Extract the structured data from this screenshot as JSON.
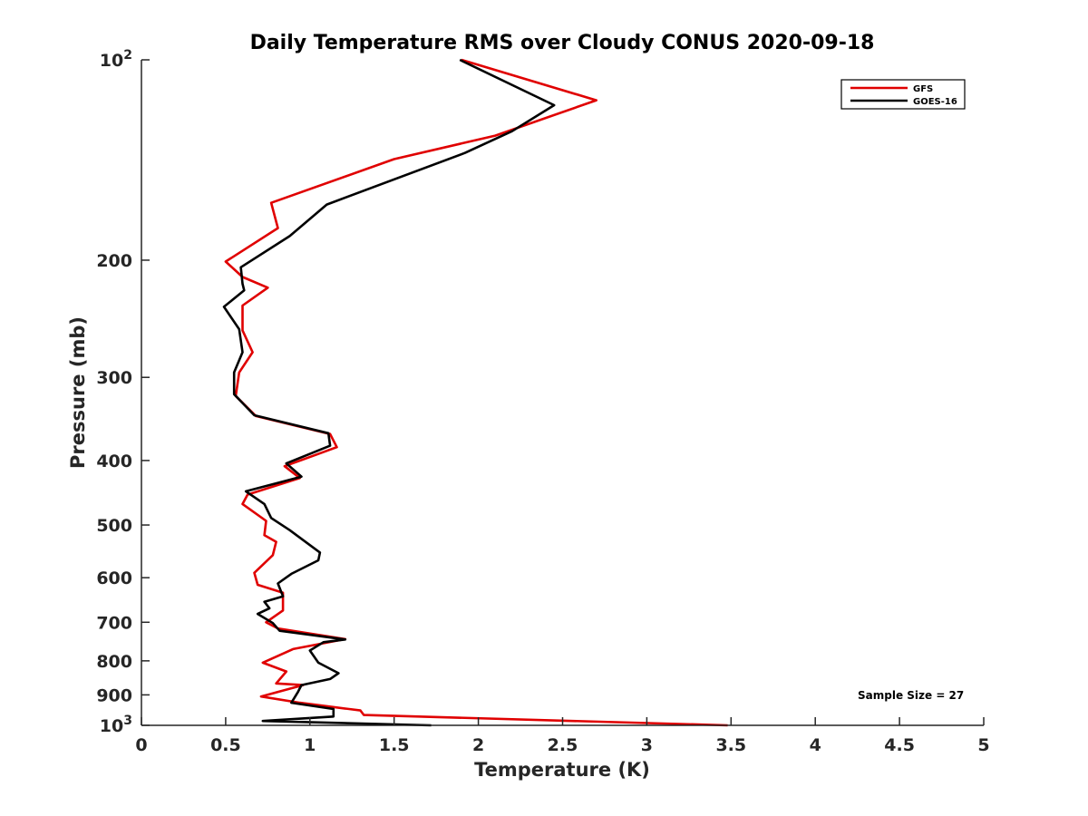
{
  "chart_data": {
    "type": "line",
    "title": "Daily Temperature RMS over Cloudy CONUS 2020-09-18",
    "xlabel": "Temperature (K)",
    "ylabel": "Pressure (mb)",
    "xlim": [
      0,
      5
    ],
    "ylim": [
      100,
      1000
    ],
    "y_scale": "log",
    "y_reversed": true,
    "grid": false,
    "legend_position": "top-right",
    "x_ticks": [
      "0",
      "0.5",
      "1",
      "1.5",
      "2",
      "2.5",
      "3",
      "3.5",
      "4",
      "4.5",
      "5"
    ],
    "y_ticks": [
      {
        "value": 100,
        "base": "10",
        "exp": "2",
        "text": ""
      },
      {
        "value": 200,
        "base": "",
        "exp": "",
        "text": "200"
      },
      {
        "value": 300,
        "base": "",
        "exp": "",
        "text": "300"
      },
      {
        "value": 400,
        "base": "",
        "exp": "",
        "text": "400"
      },
      {
        "value": 500,
        "base": "",
        "exp": "",
        "text": "500"
      },
      {
        "value": 600,
        "base": "",
        "exp": "",
        "text": "600"
      },
      {
        "value": 700,
        "base": "",
        "exp": "",
        "text": "700"
      },
      {
        "value": 800,
        "base": "",
        "exp": "",
        "text": "800"
      },
      {
        "value": 900,
        "base": "",
        "exp": "",
        "text": "900"
      },
      {
        "value": 1000,
        "base": "10",
        "exp": "3",
        "text": ""
      }
    ],
    "annotation": "Sample Size = 27",
    "series": [
      {
        "name": "GFS",
        "color": "#e00000",
        "points": [
          [
            1.9,
            100
          ],
          [
            2.7,
            115
          ],
          [
            2.1,
            130
          ],
          [
            1.5,
            141
          ],
          [
            0.77,
            164
          ],
          [
            0.81,
            179
          ],
          [
            0.5,
            201
          ],
          [
            0.6,
            212
          ],
          [
            0.75,
            220
          ],
          [
            0.6,
            234
          ],
          [
            0.6,
            255
          ],
          [
            0.66,
            275
          ],
          [
            0.58,
            295
          ],
          [
            0.56,
            320
          ],
          [
            0.68,
            343
          ],
          [
            1.12,
            365
          ],
          [
            1.16,
            382
          ],
          [
            0.85,
            408
          ],
          [
            0.94,
            425
          ],
          [
            0.63,
            450
          ],
          [
            0.6,
            465
          ],
          [
            0.74,
            493
          ],
          [
            0.73,
            518
          ],
          [
            0.8,
            530
          ],
          [
            0.78,
            555
          ],
          [
            0.67,
            590
          ],
          [
            0.69,
            615
          ],
          [
            0.84,
            632
          ],
          [
            0.84,
            672
          ],
          [
            0.74,
            700
          ],
          [
            0.81,
            715
          ],
          [
            1.21,
            742
          ],
          [
            0.9,
            768
          ],
          [
            0.72,
            805
          ],
          [
            0.86,
            830
          ],
          [
            0.8,
            865
          ],
          [
            0.96,
            870
          ],
          [
            0.71,
            905
          ],
          [
            0.94,
            925
          ],
          [
            1.3,
            950
          ],
          [
            1.32,
            965
          ],
          [
            3.48,
            1000
          ]
        ]
      },
      {
        "name": "GOES-16",
        "color": "#000000",
        "points": [
          [
            1.89,
            100
          ],
          [
            2.45,
            117
          ],
          [
            2.2,
            128
          ],
          [
            1.92,
            138
          ],
          [
            1.1,
            165
          ],
          [
            0.88,
            184
          ],
          [
            0.59,
            205
          ],
          [
            0.6,
            217
          ],
          [
            0.61,
            222
          ],
          [
            0.49,
            235
          ],
          [
            0.58,
            254
          ],
          [
            0.6,
            275
          ],
          [
            0.55,
            295
          ],
          [
            0.55,
            318
          ],
          [
            0.67,
            342
          ],
          [
            1.11,
            364
          ],
          [
            1.12,
            380
          ],
          [
            0.86,
            404
          ],
          [
            0.95,
            423
          ],
          [
            0.62,
            445
          ],
          [
            0.73,
            465
          ],
          [
            0.77,
            488
          ],
          [
            0.88,
            509
          ],
          [
            1.06,
            550
          ],
          [
            1.05,
            565
          ],
          [
            0.89,
            592
          ],
          [
            0.81,
            612
          ],
          [
            0.84,
            640
          ],
          [
            0.73,
            652
          ],
          [
            0.76,
            667
          ],
          [
            0.69,
            680
          ],
          [
            0.78,
            702
          ],
          [
            0.82,
            721
          ],
          [
            1.21,
            743
          ],
          [
            1.08,
            750
          ],
          [
            1.0,
            772
          ],
          [
            1.05,
            805
          ],
          [
            1.17,
            835
          ],
          [
            1.12,
            852
          ],
          [
            0.95,
            870
          ],
          [
            0.93,
            890
          ],
          [
            0.89,
            925
          ],
          [
            1.14,
            945
          ],
          [
            1.14,
            970
          ],
          [
            0.72,
            985
          ],
          [
            1.72,
            1000
          ]
        ]
      }
    ]
  }
}
